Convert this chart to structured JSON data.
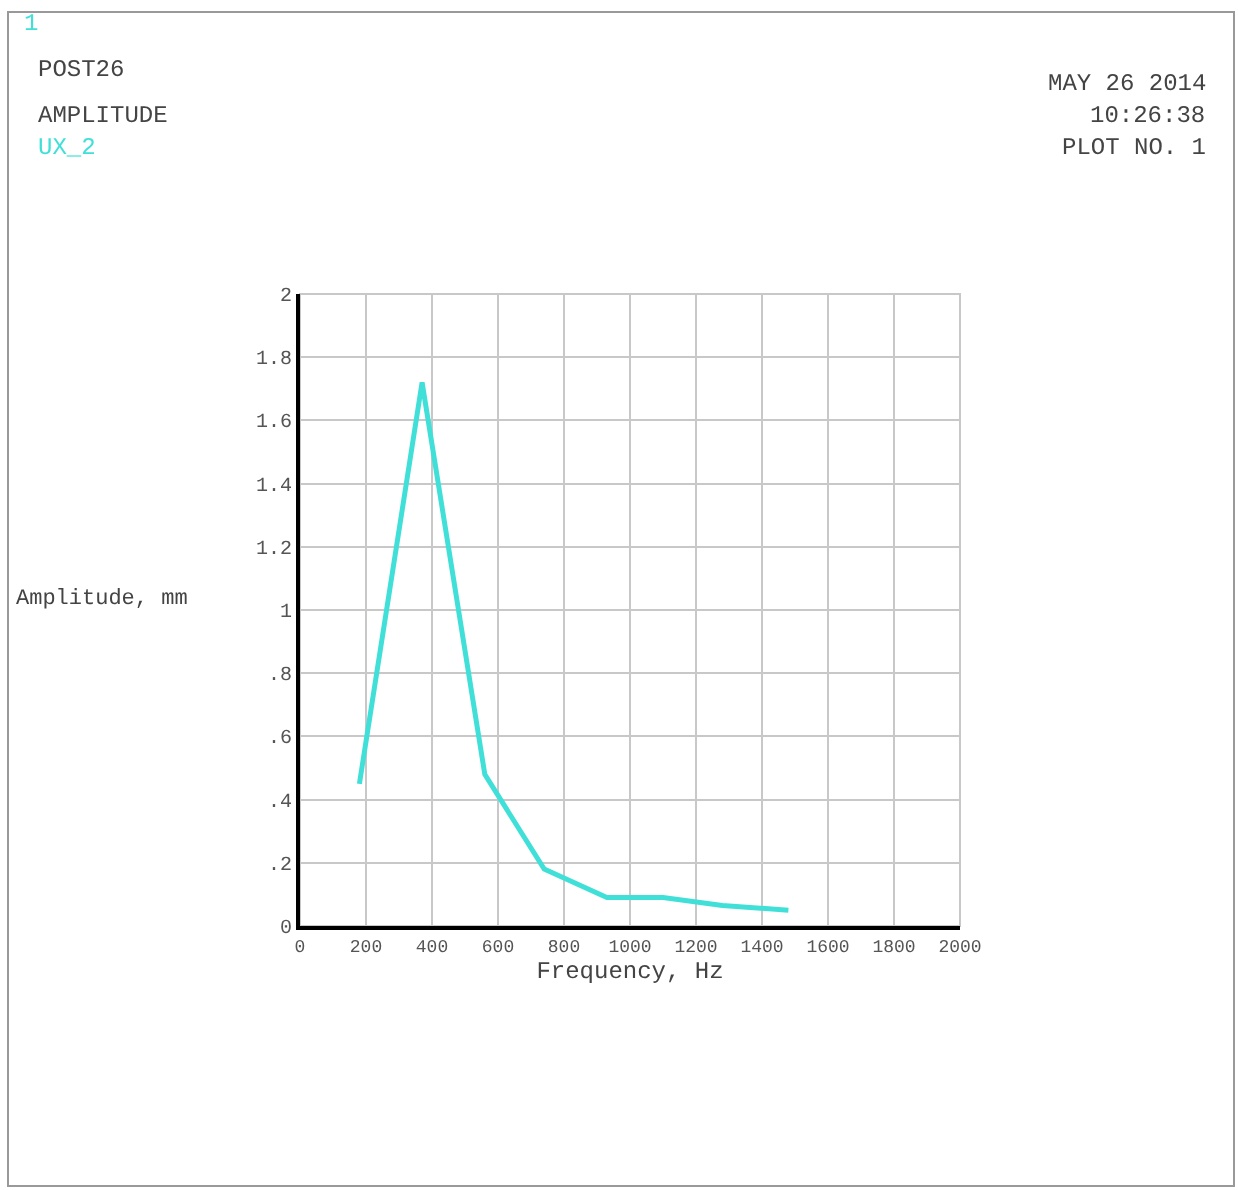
{
  "chart_data": {
    "type": "line",
    "xlabel": "Frequency, Hz",
    "ylabel": "Amplitude, mm",
    "annotations": [
      "1",
      "POST26",
      "AMPLITUDE",
      "MAY 26 2014",
      "10:26:38",
      "PLOT NO. 1"
    ],
    "x": [
      180,
      370,
      560,
      740,
      930,
      1100,
      1280,
      1480
    ],
    "series": [
      {
        "name": "UX_2",
        "color": "#40e0d8",
        "values": [
          0.45,
          1.72,
          0.48,
          0.18,
          0.09,
          0.09,
          0.065,
          0.05
        ]
      }
    ],
    "xlim": [
      0,
      2000
    ],
    "xticks": [
      0,
      200,
      400,
      600,
      800,
      1000,
      1200,
      1400,
      1600,
      1800,
      2000
    ],
    "ylim": [
      0,
      2
    ],
    "yticks": [
      0,
      {
        "value": 0.2,
        "label": ".2"
      },
      {
        "value": 0.4,
        "label": ".4"
      },
      {
        "value": 0.6,
        "label": ".6"
      },
      {
        "value": 0.8,
        "label": ".8"
      },
      1,
      1.2,
      1.4,
      1.6,
      1.8,
      2
    ],
    "grid": true,
    "legend": false,
    "marker": "none",
    "line_style": "solid"
  }
}
